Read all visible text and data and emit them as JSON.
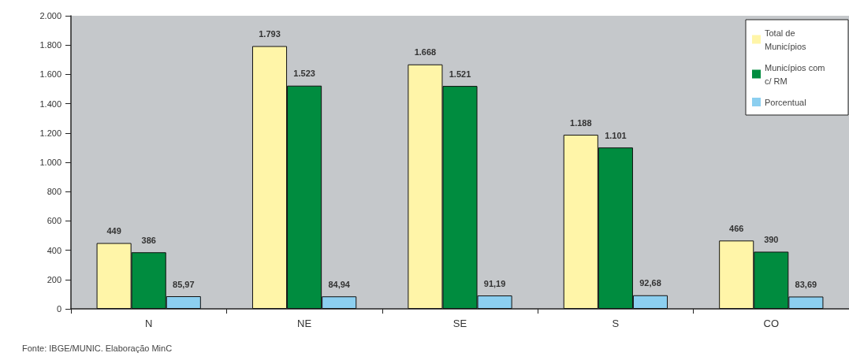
{
  "chart_data": {
    "type": "bar",
    "categories": [
      "N",
      "NE",
      "SE",
      "S",
      "CO"
    ],
    "series": [
      {
        "name": "Total de Municípios",
        "color": "#fff5a8",
        "values": [
          449,
          1793,
          1668,
          1188,
          466
        ],
        "value_labels": [
          "449",
          "1.793",
          "1.668",
          "1.188",
          "466"
        ]
      },
      {
        "name": "Municípios com c/ RM",
        "color": "#008c3f",
        "values": [
          386,
          1523,
          1521,
          1101,
          390
        ],
        "value_labels": [
          "386",
          "1.523",
          "1.521",
          "1.101",
          "390"
        ]
      },
      {
        "name": "Porcentual",
        "color": "#8ccff0",
        "values": [
          85.97,
          84.94,
          91.19,
          92.68,
          83.69
        ],
        "value_labels": [
          "85,97",
          "84,94",
          "91,19",
          "92,68",
          "83,69"
        ]
      }
    ],
    "ylim": [
      0,
      2000
    ],
    "yticks": [
      0,
      200,
      400,
      600,
      800,
      {
        "value": 1000,
        "label": "1.000"
      },
      {
        "value": 1200,
        "label": "1.200"
      },
      {
        "value": 1400,
        "label": "1.400"
      },
      {
        "value": 1600,
        "label": "1.600"
      },
      {
        "value": 1800,
        "label": "1.800"
      },
      {
        "value": 2000,
        "label": "2.000"
      }
    ],
    "legend": "top right",
    "annotations": [
      "Fonte: IBGE/MUNIC. Elaboração MinC"
    ]
  }
}
